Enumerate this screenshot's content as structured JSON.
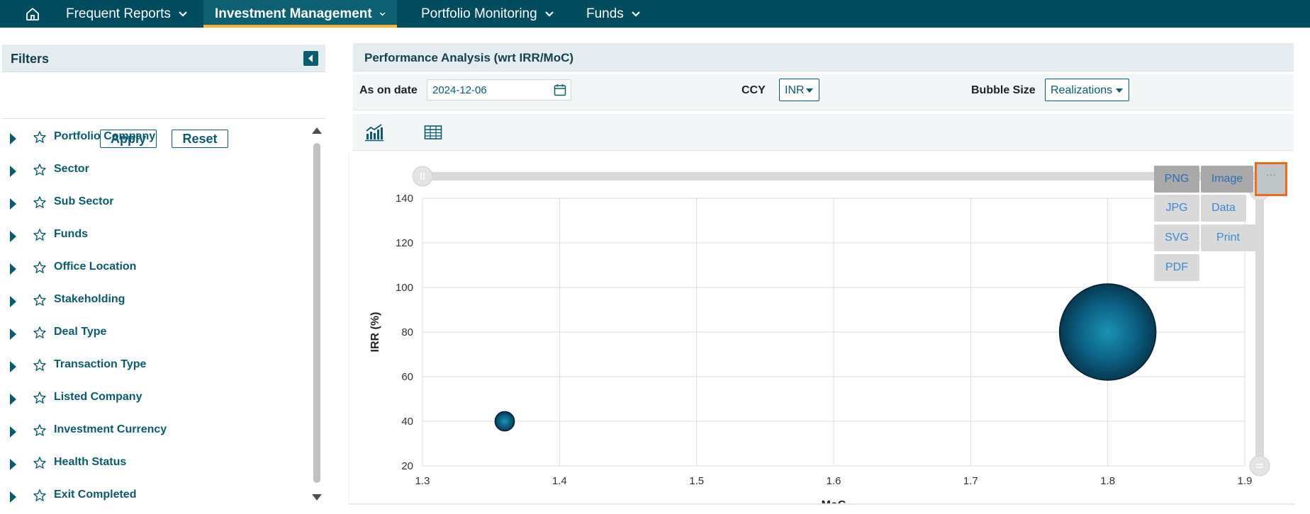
{
  "nav": {
    "items": [
      {
        "label": "Frequent Reports"
      },
      {
        "label": "Investment Management",
        "active": true
      },
      {
        "label": "Portfolio Monitoring"
      },
      {
        "label": "Funds"
      }
    ]
  },
  "filters": {
    "title": "Filters",
    "apply_label": "Apply",
    "reset_label": "Reset",
    "items": [
      "Portfolio Company",
      "Sector",
      "Sub Sector",
      "Funds",
      "Office Location",
      "Stakeholding",
      "Deal Type",
      "Transaction Type",
      "Listed Company",
      "Investment Currency",
      "Health Status",
      "Exit Completed"
    ]
  },
  "main": {
    "title": "Performance Analysis (wrt IRR/MoC)",
    "as_on_date_label": "As on date",
    "as_on_date_value": "2024-12-06",
    "ccy_label": "CCY",
    "ccy_value": "INR",
    "bubble_size_label": "Bubble Size",
    "bubble_size_value": "Realizations"
  },
  "export_menu": {
    "menu_label": "···",
    "items": [
      "PNG",
      "Image",
      "JPG",
      "Data",
      "SVG",
      "Print",
      "PDF"
    ]
  },
  "colors": {
    "nav_bg": "#004c5f",
    "accent": "#0a5b6d",
    "active_underline": "#f2b632",
    "bubble": "#0b6b8c",
    "highlight": "#ee6a1e"
  },
  "chart_data": {
    "type": "scatter",
    "title": "",
    "xlabel": "MoC",
    "ylabel": "IRR (%)",
    "xlim": [
      1.3,
      1.9
    ],
    "ylim": [
      20,
      140
    ],
    "x_ticks": [
      1.3,
      1.4,
      1.5,
      1.6,
      1.7,
      1.8,
      1.9
    ],
    "y_ticks": [
      20,
      40,
      60,
      80,
      100,
      120,
      140
    ],
    "grid": true,
    "series": [
      {
        "points": [
          {
            "x": 1.36,
            "y": 40,
            "size": 0.2
          },
          {
            "x": 1.8,
            "y": 80,
            "size": 1.0
          }
        ]
      }
    ]
  }
}
